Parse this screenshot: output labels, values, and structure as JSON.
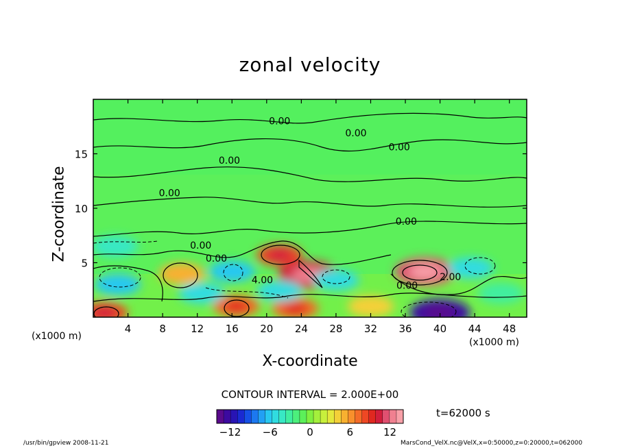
{
  "chart_data": {
    "type": "heatmap",
    "title": "zonal velocity",
    "xlabel": "X-coordinate",
    "ylabel": "Z-coordinate",
    "x_unit_left": "(x1000 m)",
    "x_unit_right": "(x1000 m)",
    "xlim": [
      0,
      50
    ],
    "ylim": [
      0,
      20
    ],
    "x_ticks": [
      4,
      8,
      12,
      16,
      20,
      24,
      28,
      32,
      36,
      40,
      44,
      48
    ],
    "y_ticks": [
      5,
      10,
      15
    ],
    "contour_interval": "CONTOUR INTERVAL = 2.000E+00",
    "time_label": "t=62000 s",
    "colorbar": {
      "min": -14,
      "max": 14,
      "ticks": [
        -12,
        -6,
        0,
        6,
        12
      ],
      "colors": [
        "#5a0a8c",
        "#3c0aa0",
        "#2814b4",
        "#1a2ad2",
        "#1650e6",
        "#1c78f0",
        "#22a0f4",
        "#28c8f0",
        "#30dce0",
        "#38e8c4",
        "#40eea0",
        "#4cf07c",
        "#5cf05a",
        "#80f040",
        "#a4f03c",
        "#c8f03c",
        "#e4e83c",
        "#f4d038",
        "#f8b030",
        "#f8902c",
        "#f46c28",
        "#ee4824",
        "#e02820",
        "#d21e3c",
        "#e05070",
        "#f08090",
        "#f8a0a8"
      ]
    },
    "contour_labels": [
      {
        "text": "0.00",
        "x": 21.5,
        "y": 17.7
      },
      {
        "text": "0.00",
        "x": 30.3,
        "y": 16.6
      },
      {
        "text": "0.00",
        "x": 35.3,
        "y": 15.3
      },
      {
        "text": "0.00",
        "x": 15.7,
        "y": 14.1
      },
      {
        "text": "0.00",
        "x": 8.8,
        "y": 11.1
      },
      {
        "text": "0.00",
        "x": 36.1,
        "y": 8.5
      },
      {
        "text": "0.00",
        "x": 12.4,
        "y": 6.3
      },
      {
        "text": "0.00",
        "x": 14.2,
        "y": 5.1
      },
      {
        "text": "4.00",
        "x": 19.5,
        "y": 3.1
      },
      {
        "text": "0.00",
        "x": 36.2,
        "y": 2.6
      },
      {
        "text": "2.00",
        "x": 41.2,
        "y": 3.4
      }
    ],
    "features": [
      {
        "x": 38.3,
        "z": 4.2,
        "value": 12
      },
      {
        "x": 21.5,
        "z": 5.7,
        "value": 9
      },
      {
        "x": 24.8,
        "z": 3.9,
        "value": 11
      },
      {
        "x": 10.2,
        "z": 4.0,
        "value": 5
      },
      {
        "x": 1.3,
        "z": 0.4,
        "value": 9
      },
      {
        "x": 16.5,
        "z": 1.0,
        "value": 8
      },
      {
        "x": 23.3,
        "z": 0.8,
        "value": 8
      },
      {
        "x": 40.0,
        "z": 0.4,
        "value": -13
      },
      {
        "x": 16.0,
        "z": 4.2,
        "value": -6
      },
      {
        "x": 21.5,
        "z": 2.4,
        "value": -5
      },
      {
        "x": 28.0,
        "z": 3.4,
        "value": -5
      },
      {
        "x": 43.5,
        "z": 4.5,
        "value": -5
      },
      {
        "x": 2.8,
        "z": 3.0,
        "value": -6
      },
      {
        "x": 2.5,
        "z": 6.5,
        "value": -4
      },
      {
        "x": 12.5,
        "z": 2.2,
        "value": -5
      },
      {
        "x": 32.0,
        "z": 1.0,
        "value": 4
      },
      {
        "x": 47.0,
        "z": 2.2,
        "value": -3
      }
    ]
  },
  "footer": {
    "left": "/usr/bin/gpview   2008-11-21",
    "right": "MarsCond_VelX.nc@VelX,x=0:50000,z=0:20000,t=062000"
  }
}
